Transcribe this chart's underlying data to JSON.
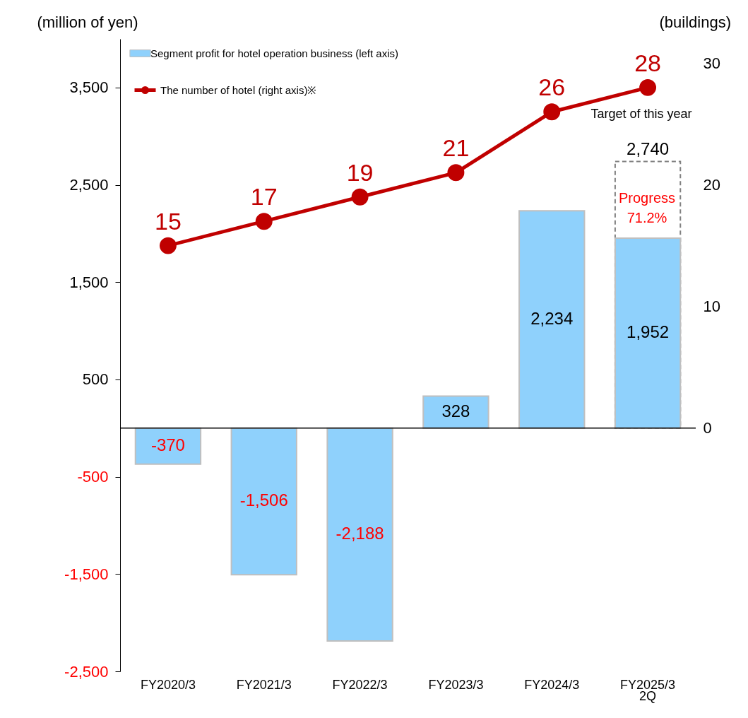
{
  "chart_data": {
    "type": "bar",
    "categories": [
      "FY2020/3",
      "FY2021/3",
      "FY2022/3",
      "FY2023/3",
      "FY2024/3",
      "FY2025/3\n2Q"
    ],
    "ylabel": "(million of yen)",
    "y2label": "(buildings)",
    "series": [
      {
        "color": "#ffffff",
        "values": [
          null,
          null,
          null,
          null,
          null,
          2740
        ],
        "value_labels": [
          null,
          null,
          null,
          null,
          null,
          "2,740"
        ]
      },
      {
        "name": "Segment profit for hotel operation business (left axis)",
        "color": "#8fd1fc",
        "values": [
          -370,
          -1506,
          -2188,
          328,
          2234,
          1952
        ],
        "value_labels": [
          "-370",
          "-1,506",
          "-2,188",
          "328",
          "2,234",
          "1,952"
        ]
      },
      {
        "name": "The number of hotel (right axis)※",
        "type": "line",
        "axis": "y2",
        "color": "#c00000",
        "values": [
          15,
          17,
          19,
          21,
          26,
          28
        ]
      }
    ],
    "data_labels": true,
    "marker": "circle",
    "ylim": [
      -2500,
      4000
    ],
    "yticks": [
      {
        "value": -2500,
        "label": "-2,500"
      },
      {
        "value": -1500,
        "label": "-1,500"
      },
      -500,
      500,
      {
        "value": 1500,
        "label": "1,500"
      },
      {
        "value": 2500,
        "label": "2,500"
      },
      {
        "value": 3500,
        "label": "3,500"
      }
    ],
    "y2lim": [
      -20,
      32
    ],
    "y2ticks": [
      0,
      10,
      20,
      30
    ],
    "ref_lines": [
      {
        "axis": "y",
        "value": 0
      }
    ],
    "annotations": [
      "Target of this year",
      "Progress\n71.2%"
    ],
    "legend": "top left"
  }
}
